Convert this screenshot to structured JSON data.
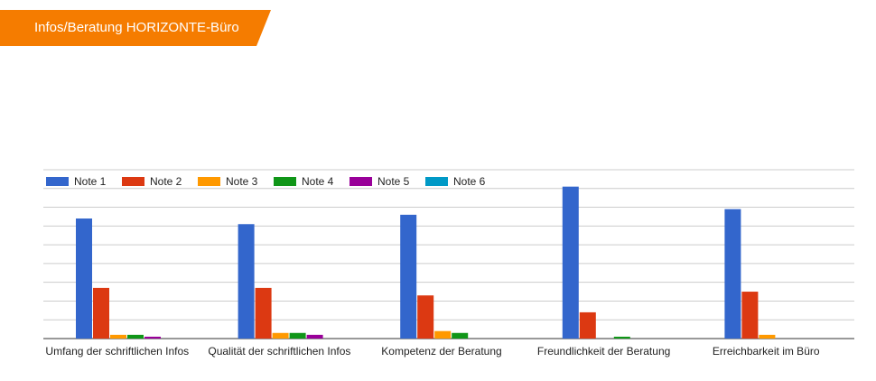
{
  "header": {
    "title": "Infos/Beratung HORIZONTE-Büro",
    "banner_color": "#F57C00"
  },
  "chart_data": {
    "type": "bar",
    "title": "",
    "xlabel": "",
    "ylabel": "",
    "categories": [
      "Umfang der schriftlichen Infos",
      "Qualität der schriftlichen Infos",
      "Kompetenz der Beratung",
      "Freundlichkeit der Beratung",
      "Erreichbarkeit im Büro"
    ],
    "series": [
      {
        "name": "Note 1",
        "color": "#3366CC",
        "values": [
          64,
          61,
          66,
          81,
          69
        ]
      },
      {
        "name": "Note 2",
        "color": "#DC3912",
        "values": [
          27,
          27,
          23,
          14,
          25
        ]
      },
      {
        "name": "Note 3",
        "color": "#FF9900",
        "values": [
          2,
          3,
          4,
          0,
          2
        ]
      },
      {
        "name": "Note 4",
        "color": "#109618",
        "values": [
          2,
          3,
          3,
          1,
          0
        ]
      },
      {
        "name": "Note 5",
        "color": "#990099",
        "values": [
          1,
          2,
          0,
          0,
          0
        ]
      },
      {
        "name": "Note 6",
        "color": "#0099C6",
        "values": [
          0,
          0,
          0,
          0,
          0
        ]
      }
    ],
    "ylim": [
      0,
      90
    ],
    "grid": true,
    "gridlines": 9,
    "y_tick_labels_shown": false,
    "legend": "top-left"
  }
}
